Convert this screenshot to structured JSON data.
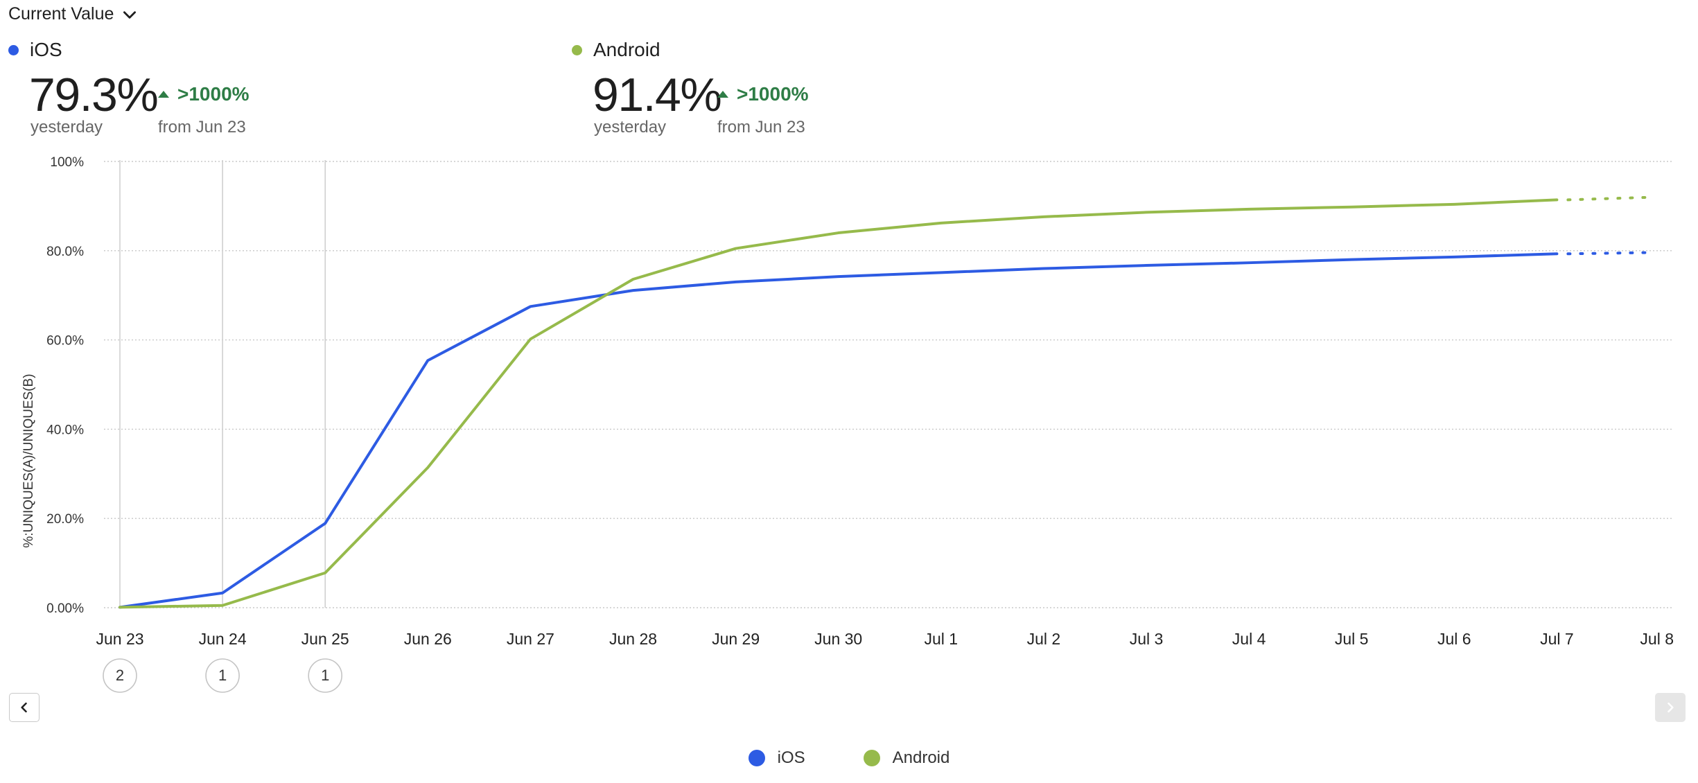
{
  "header": {
    "metric_select_label": "Current Value"
  },
  "summary": [
    {
      "name": "iOS",
      "value": "79.3%",
      "value_caption": "yesterday",
      "change": ">1000%",
      "change_caption": "from Jun 23"
    },
    {
      "name": "Android",
      "value": "91.4%",
      "value_caption": "yesterday",
      "change": ">1000%",
      "change_caption": "from Jun 23"
    }
  ],
  "colors": {
    "ios": "#2d5be3",
    "android": "#96ba4b",
    "positive": "#2e7d46"
  },
  "icons": {
    "dropdown": "chevron-down-icon",
    "prev": "chevron-left-icon",
    "next": "chevron-right-icon",
    "change": "triangle-up-icon"
  },
  "chart_data": {
    "type": "line",
    "ylabel": "%:UNIQUES(A)/UNIQUES(B)",
    "ylim": [
      0,
      100
    ],
    "yticks": [
      "0.00%",
      "20.0%",
      "40.0%",
      "60.0%",
      "80.0%",
      "100%"
    ],
    "ytick_values": [
      0,
      20,
      40,
      60,
      80,
      100
    ],
    "categories": [
      "Jun 23",
      "Jun 24",
      "Jun 25",
      "Jun 26",
      "Jun 27",
      "Jun 28",
      "Jun 29",
      "Jun 30",
      "Jul 1",
      "Jul 2",
      "Jul 3",
      "Jul 4",
      "Jul 5",
      "Jul 6",
      "Jul 7",
      "Jul 8"
    ],
    "series": [
      {
        "name": "iOS",
        "values": [
          0.1,
          3.3,
          18.9,
          55.4,
          67.5,
          71.1,
          73.0,
          74.2,
          75.1,
          76.0,
          76.7,
          77.3,
          78.0,
          78.6,
          79.3,
          79.6
        ]
      },
      {
        "name": "Android",
        "values": [
          0.1,
          0.5,
          7.8,
          31.4,
          60.2,
          73.6,
          80.5,
          84.0,
          86.2,
          87.6,
          88.6,
          89.3,
          89.8,
          90.4,
          91.4,
          92.0
        ]
      }
    ],
    "incomplete_from": "Jul 7",
    "annotations": [
      {
        "x": "Jun 23",
        "label": "2"
      },
      {
        "x": "Jun 24",
        "label": "1"
      },
      {
        "x": "Jun 25",
        "label": "1"
      }
    ],
    "grid": true,
    "legend": "bottom"
  }
}
